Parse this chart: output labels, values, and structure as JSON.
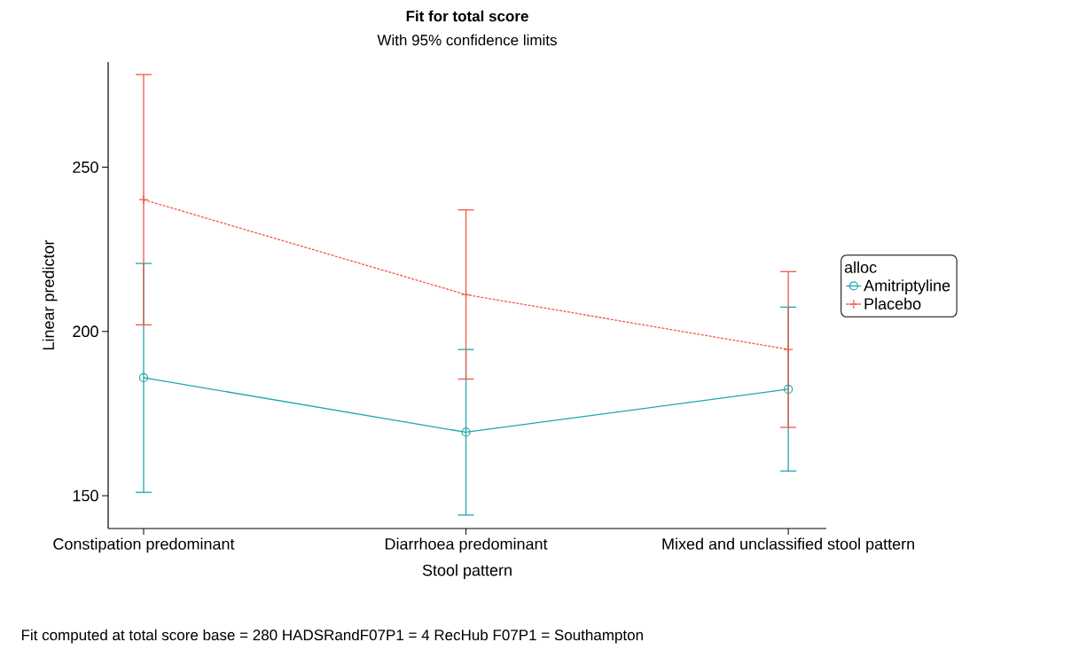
{
  "chart_data": {
    "type": "line",
    "title": "Fit for total score",
    "subtitle": "With 95% confidence limits",
    "xlabel": "Stool pattern",
    "ylabel": "Linear predictor",
    "legend_title": "alloc",
    "categories": [
      "Constipation predominant",
      "Diarrhoea predominant",
      "Mixed and unclassified stool pattern"
    ],
    "series": [
      {
        "name": "Amitriptyline",
        "color": "#20a6ad",
        "values": [
          185.9,
          169.3,
          182.4
        ],
        "errors": [
          [
            151.0,
            220.7
          ],
          [
            144.1,
            194.5
          ],
          [
            157.5,
            207.4
          ]
        ],
        "marker": "circle",
        "line_style": "solid"
      },
      {
        "name": "Placebo",
        "color": "#ee5a45",
        "values": [
          240.1,
          211.2,
          194.5
        ],
        "errors": [
          [
            202.0,
            278.2
          ],
          [
            185.5,
            237.0
          ],
          [
            170.8,
            218.2
          ]
        ],
        "marker": "cross",
        "line_style": "dashed"
      }
    ],
    "ylim": [
      140,
      282
    ],
    "yticks": [
      150,
      200,
      250
    ],
    "grid": false,
    "legend": "right",
    "annotations": [
      "Fit computed at total score base = 280 HADSRandF07P1 = 4 RecHub F07P1 = Southampton"
    ]
  }
}
